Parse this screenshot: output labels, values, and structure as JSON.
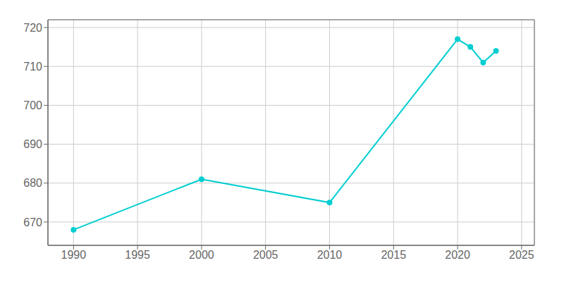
{
  "chart_data": {
    "type": "line",
    "x": [
      1990,
      2000,
      2010,
      2020,
      2021,
      2022,
      2023
    ],
    "values": [
      668,
      681,
      675,
      717,
      715,
      711,
      714
    ],
    "color": "#00CED1",
    "marker": "circle",
    "xlim": [
      1988,
      2026
    ],
    "ylim": [
      664,
      722
    ],
    "xticks": [
      1990,
      1995,
      2000,
      2005,
      2010,
      2015,
      2020,
      2025
    ],
    "yticks": [
      670,
      680,
      690,
      700,
      710,
      720
    ],
    "grid": true
  }
}
